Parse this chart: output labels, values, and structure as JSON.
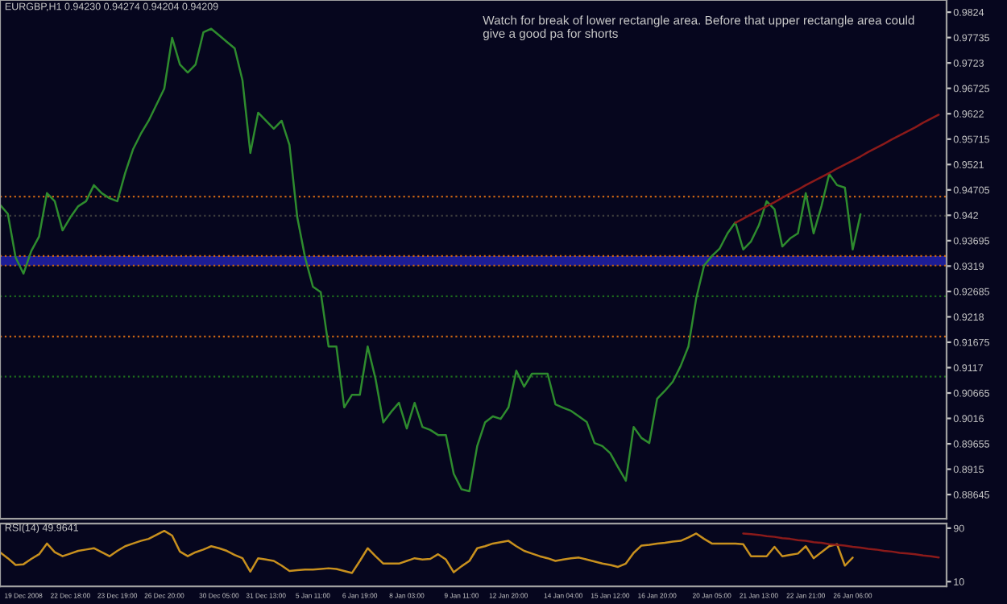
{
  "chart_data": [
    {
      "type": "line",
      "title": "EURGBP,H1 0.94230 0.94274 0.94204 0.94209",
      "annotations": [
        "Watch for break of lower rectangle area. Before that upper rectangle area could give a good pa for shorts"
      ],
      "categories": [
        null,
        null,
        null,
        null,
        null,
        null,
        null,
        null,
        null,
        null,
        null,
        null,
        null,
        null,
        null,
        null,
        null,
        null,
        null,
        null,
        null,
        null,
        null,
        null,
        null,
        null,
        null,
        null,
        null,
        null,
        null,
        null,
        null,
        null,
        null,
        null,
        null,
        null,
        null,
        null,
        null,
        null,
        null,
        null,
        null,
        null,
        null,
        null,
        null,
        null,
        null,
        null,
        null,
        null,
        null,
        null,
        null,
        null,
        null,
        null,
        null,
        null,
        null,
        null,
        null,
        null,
        null,
        null,
        null,
        null,
        null,
        null,
        null,
        null,
        null,
        null,
        null,
        null,
        null,
        null,
        null,
        null,
        null,
        null,
        null,
        null,
        null,
        null,
        null,
        null,
        null,
        null,
        null,
        null,
        null,
        null,
        null,
        null,
        null,
        null,
        null,
        null,
        null,
        null,
        null,
        null,
        null,
        null,
        null,
        null,
        null,
        null,
        null,
        null,
        null,
        null,
        null,
        null,
        null,
        null,
        null
      ],
      "ylim": [
        0.88166,
        0.98482
      ],
      "yticks": [
        0.88645,
        0.8915,
        0.89655,
        0.9016,
        0.90665,
        0.9117,
        0.91675,
        0.9218,
        0.92685,
        0.9319,
        0.93695,
        0.942,
        0.94705,
        0.9521,
        0.95715,
        0.9622,
        0.96725,
        0.9723,
        0.97735,
        0.9824
      ],
      "tick_labels": "y",
      "grid": false,
      "legend": false,
      "series": [
        {
          "color": "#2e8b2e",
          "values": [
            0.9441,
            0.9423,
            0.9336,
            0.9304,
            0.9349,
            0.9378,
            0.9464,
            0.9448,
            0.939,
            0.9416,
            0.9438,
            0.9448,
            0.948,
            0.9464,
            0.9454,
            0.9448,
            0.9504,
            0.9551,
            0.9582,
            0.9608,
            0.964,
            0.9672,
            0.9773,
            0.972,
            0.9704,
            0.972,
            0.9784,
            0.9791,
            0.9778,
            0.9765,
            0.9752,
            0.9688,
            0.9544,
            0.9624,
            0.9608,
            0.9592,
            0.9608,
            0.956,
            0.9416,
            0.9336,
            0.9278,
            0.9267,
            0.9159,
            0.9159,
            0.9038,
            0.9063,
            0.9063,
            0.9159,
            0.9095,
            0.9008,
            0.9029,
            0.9047,
            0.8996,
            0.9047,
            0.8999,
            0.8993,
            0.8983,
            0.8983,
            0.8906,
            0.8875,
            0.8871,
            0.8961,
            0.9008,
            0.902,
            0.9015,
            0.9038,
            0.9111,
            0.9079,
            0.9105,
            0.9105,
            0.9105,
            0.9044,
            0.9037,
            0.9031,
            0.902,
            0.9009,
            0.8967,
            0.8961,
            0.8947,
            0.8919,
            0.8892,
            0.8999,
            0.8977,
            0.8967,
            0.9055,
            0.9071,
            0.9089,
            0.912,
            0.9159,
            0.9255,
            0.932,
            0.9339,
            0.9354,
            0.9384,
            0.9406,
            0.9352,
            0.9368,
            0.94,
            0.9448,
            0.9432,
            0.9358,
            0.9374,
            0.9384,
            0.9464,
            0.9384,
            0.9438,
            0.9502,
            0.948,
            0.9475,
            0.9352,
            0.9422,
            null,
            null,
            null,
            null,
            null,
            null,
            null,
            null,
            null,
            null
          ]
        },
        {
          "type": "line",
          "color": "#8b1a1a",
          "values": [
            null,
            null,
            null,
            null,
            null,
            null,
            null,
            null,
            null,
            null,
            null,
            null,
            null,
            null,
            null,
            null,
            null,
            null,
            null,
            null,
            null,
            null,
            null,
            null,
            null,
            null,
            null,
            null,
            null,
            null,
            null,
            null,
            null,
            null,
            null,
            null,
            null,
            null,
            null,
            null,
            null,
            null,
            null,
            null,
            null,
            null,
            null,
            null,
            null,
            null,
            null,
            null,
            null,
            null,
            null,
            null,
            null,
            null,
            null,
            null,
            null,
            null,
            null,
            null,
            null,
            null,
            null,
            null,
            null,
            null,
            null,
            null,
            null,
            null,
            null,
            null,
            null,
            null,
            null,
            null,
            null,
            null,
            null,
            null,
            null,
            null,
            null,
            null,
            null,
            null,
            null,
            null,
            null,
            null,
            0.9405,
            0.9413,
            0.9422,
            0.943,
            0.9438,
            0.9446,
            0.9455,
            0.9463,
            0.9471,
            0.948,
            0.9488,
            0.9496,
            0.9504,
            0.9513,
            0.9521,
            0.9529,
            0.9537,
            0.9546,
            0.9554,
            0.9562,
            0.9571,
            0.9579,
            0.9587,
            0.9595,
            0.9604,
            0.9612,
            0.962
          ]
        }
      ],
      "ref_lines": [
        {
          "axis": "y",
          "value": 0.9457,
          "color": "#c86414",
          "line_style": "dotted"
        },
        {
          "axis": "y",
          "value": 0.9419,
          "color": "#3c3c3c",
          "line_style": "dotted"
        },
        {
          "axis": "y",
          "value": 0.9339,
          "color": "#c86414",
          "line_style": "dotted"
        },
        {
          "axis": "y",
          "value": 0.932,
          "color": "#c86414",
          "line_style": "dotted"
        },
        {
          "axis": "y",
          "value": 0.9259,
          "color": "#1e6a1e",
          "line_style": "dotted"
        },
        {
          "axis": "y",
          "value": 0.9179,
          "color": "#c86414",
          "line_style": "dotted"
        },
        {
          "axis": "y",
          "value": 0.9099,
          "color": "#1e6a1e",
          "line_style": "dotted"
        }
      ],
      "bands": [
        {
          "axis": "y",
          "from": 0.932,
          "to": 0.9339,
          "color": "#2828c8"
        }
      ]
    },
    {
      "type": "line",
      "title": "RSI(14) 49.9641",
      "categories": [
        null,
        null,
        null,
        "19 Dec 2008",
        null,
        null,
        null,
        null,
        null,
        "22 Dec 18:00",
        null,
        null,
        null,
        null,
        null,
        "23 Dec 19:00",
        null,
        null,
        null,
        null,
        null,
        "26 Dec 20:00",
        null,
        null,
        null,
        null,
        null,
        null,
        "30 Dec 05:00",
        null,
        null,
        null,
        null,
        null,
        "31 Dec 13:00",
        null,
        null,
        null,
        null,
        null,
        "5 Jan 11:00",
        null,
        null,
        null,
        null,
        null,
        "6 Jan 19:00",
        null,
        null,
        null,
        null,
        null,
        "8 Jan 03:00",
        null,
        null,
        null,
        null,
        null,
        null,
        "9 Jan 11:00",
        null,
        null,
        null,
        null,
        null,
        "12 Jan 20:00",
        null,
        null,
        null,
        null,
        null,
        null,
        "14 Jan 04:00",
        null,
        null,
        null,
        null,
        null,
        "15 Jan 12:00",
        null,
        null,
        null,
        null,
        null,
        "16 Jan 20:00",
        null,
        null,
        null,
        null,
        null,
        null,
        "20 Jan 05:00",
        null,
        null,
        null,
        null,
        null,
        "21 Jan 13:00",
        null,
        null,
        null,
        null,
        null,
        "22 Jan 21:00",
        null,
        null,
        null,
        null,
        null,
        "26 Jan 06:00",
        null,
        null,
        null,
        null,
        null,
        null,
        null,
        null,
        null,
        null,
        null
      ],
      "ylim": [
        3,
        97
      ],
      "yticks": [
        10,
        90
      ],
      "grid": false,
      "legend": false,
      "series": [
        {
          "color": "#c8901e",
          "values": [
            54,
            45,
            35,
            36,
            44,
            51,
            67,
            54,
            48,
            52,
            56,
            58,
            60,
            54,
            48,
            56,
            63,
            67,
            71,
            74,
            80,
            86,
            79,
            55,
            48,
            54,
            58,
            63,
            60,
            56,
            50,
            45,
            25,
            45,
            43,
            41,
            34,
            26,
            27,
            28,
            28,
            29,
            30,
            29,
            26,
            23,
            41,
            60,
            48,
            37,
            37,
            37,
            41,
            45,
            43,
            44,
            51,
            43,
            24,
            33,
            41,
            60,
            63,
            67,
            69,
            71,
            63,
            56,
            52,
            48,
            45,
            41,
            43,
            45,
            46,
            43,
            40,
            37,
            35,
            32,
            37,
            53,
            64,
            65,
            67,
            68,
            70,
            71,
            76,
            82,
            74,
            67,
            67,
            67,
            67,
            66,
            48,
            48,
            48,
            62,
            48,
            50,
            52,
            63,
            45,
            54,
            63,
            66,
            34,
            46,
            null,
            null,
            null,
            null,
            null,
            null,
            null,
            null,
            null,
            null,
            null
          ]
        },
        {
          "type": "line",
          "color": "#8b1a1a",
          "values": [
            null,
            null,
            null,
            null,
            null,
            null,
            null,
            null,
            null,
            null,
            null,
            null,
            null,
            null,
            null,
            null,
            null,
            null,
            null,
            null,
            null,
            null,
            null,
            null,
            null,
            null,
            null,
            null,
            null,
            null,
            null,
            null,
            null,
            null,
            null,
            null,
            null,
            null,
            null,
            null,
            null,
            null,
            null,
            null,
            null,
            null,
            null,
            null,
            null,
            null,
            null,
            null,
            null,
            null,
            null,
            null,
            null,
            null,
            null,
            null,
            null,
            null,
            null,
            null,
            null,
            null,
            null,
            null,
            null,
            null,
            null,
            null,
            null,
            null,
            null,
            null,
            null,
            null,
            null,
            null,
            null,
            null,
            null,
            null,
            null,
            null,
            null,
            null,
            null,
            null,
            null,
            null,
            null,
            null,
            null,
            82,
            81,
            80,
            78,
            77,
            75,
            74,
            72,
            71,
            69,
            68,
            66,
            65,
            64,
            62,
            61,
            59,
            58,
            56,
            55,
            53,
            52,
            51,
            49,
            48,
            46
          ]
        }
      ]
    }
  ]
}
